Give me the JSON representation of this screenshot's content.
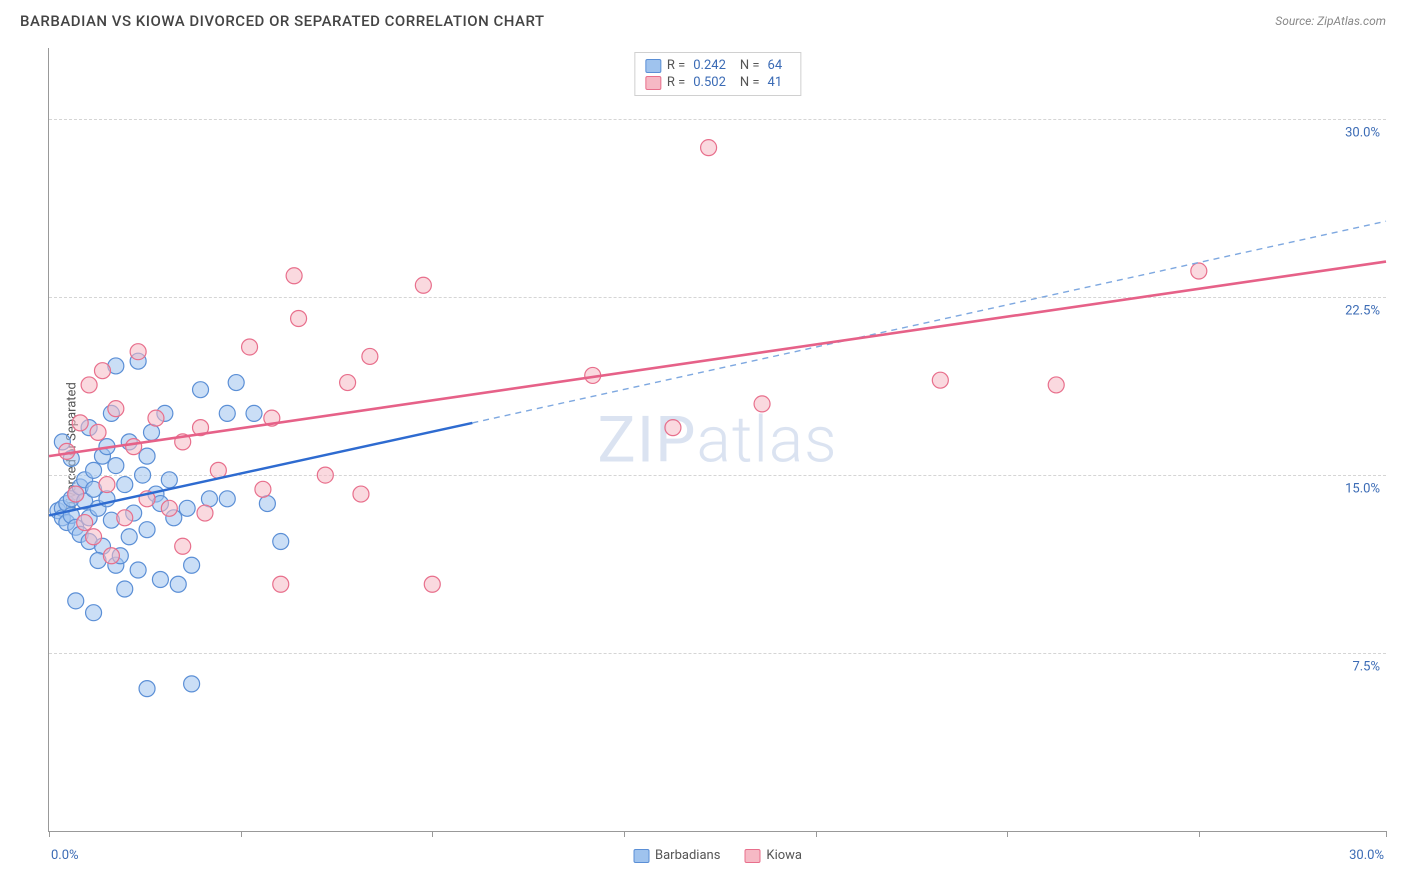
{
  "header": {
    "title": "BARBADIAN VS KIOWA DIVORCED OR SEPARATED CORRELATION CHART",
    "source": "Source: ZipAtlas.com"
  },
  "chart": {
    "type": "scatter",
    "watermark": "ZIPatlas",
    "ylabel": "Divorced or Separated",
    "xlim": [
      0,
      30
    ],
    "ylim": [
      0,
      33
    ],
    "xticks_pct": [
      0,
      4.3,
      8.6,
      12.9,
      17.2,
      21.5,
      25.8,
      30
    ],
    "x_axis_min_label": "0.0%",
    "x_axis_max_label": "30.0%",
    "yticks": [
      {
        "v": 7.5,
        "label": "7.5%"
      },
      {
        "v": 15.0,
        "label": "15.0%"
      },
      {
        "v": 22.5,
        "label": "22.5%"
      },
      {
        "v": 30.0,
        "label": "30.0%"
      }
    ],
    "background_color": "#ffffff",
    "grid_color": "#d5d5d5",
    "axis_color": "#999999",
    "label_color": "#3b6bb5",
    "marker_radius": 8,
    "marker_stroke_width": 1.2,
    "series": [
      {
        "name": "Barbadians",
        "fill": "#9fc3ee",
        "fill_opacity": 0.55,
        "stroke": "#5b8fd6",
        "R_label": "R =",
        "R": "0.242",
        "N_label": "N =",
        "N": "64",
        "trend": {
          "solid": {
            "x1": 0,
            "y1": 13.3,
            "x2": 9.5,
            "y2": 17.2,
            "color": "#2e6bd0",
            "width": 2.4
          },
          "dash": {
            "x1": 9.5,
            "y1": 17.2,
            "x2": 30,
            "y2": 25.7,
            "color": "#7ea8e0",
            "width": 1.4
          }
        },
        "points": [
          [
            0.2,
            13.5
          ],
          [
            0.3,
            13.6
          ],
          [
            0.3,
            13.2
          ],
          [
            0.4,
            13.8
          ],
          [
            0.4,
            13.0
          ],
          [
            0.5,
            14.0
          ],
          [
            0.5,
            13.3
          ],
          [
            0.6,
            14.2
          ],
          [
            0.6,
            12.8
          ],
          [
            0.7,
            14.5
          ],
          [
            0.7,
            12.5
          ],
          [
            0.8,
            13.9
          ],
          [
            0.8,
            14.8
          ],
          [
            0.9,
            13.2
          ],
          [
            0.9,
            12.2
          ],
          [
            1.0,
            14.4
          ],
          [
            1.0,
            15.2
          ],
          [
            1.1,
            13.6
          ],
          [
            1.2,
            15.8
          ],
          [
            1.2,
            12.0
          ],
          [
            1.3,
            16.2
          ],
          [
            1.3,
            14.0
          ],
          [
            1.4,
            13.1
          ],
          [
            1.5,
            11.2
          ],
          [
            1.5,
            15.4
          ],
          [
            1.5,
            19.6
          ],
          [
            1.6,
            11.6
          ],
          [
            1.7,
            14.6
          ],
          [
            1.8,
            12.4
          ],
          [
            1.8,
            16.4
          ],
          [
            1.9,
            13.4
          ],
          [
            2.0,
            19.8
          ],
          [
            2.0,
            11.0
          ],
          [
            2.1,
            15.0
          ],
          [
            2.2,
            12.7
          ],
          [
            2.3,
            16.8
          ],
          [
            2.4,
            14.2
          ],
          [
            2.5,
            10.6
          ],
          [
            2.5,
            13.8
          ],
          [
            2.6,
            17.6
          ],
          [
            2.8,
            13.2
          ],
          [
            1.0,
            9.2
          ],
          [
            2.2,
            6.0
          ],
          [
            3.2,
            6.2
          ],
          [
            3.1,
            13.6
          ],
          [
            3.4,
            18.6
          ],
          [
            2.9,
            10.4
          ],
          [
            3.6,
            14.0
          ],
          [
            3.2,
            11.2
          ],
          [
            4.0,
            17.6
          ],
          [
            4.2,
            18.9
          ],
          [
            4.6,
            17.6
          ],
          [
            4.9,
            13.8
          ],
          [
            5.2,
            12.2
          ],
          [
            4.0,
            14.0
          ],
          [
            2.7,
            14.8
          ],
          [
            0.3,
            16.4
          ],
          [
            0.5,
            15.7
          ],
          [
            0.6,
            9.7
          ],
          [
            0.9,
            17.0
          ],
          [
            1.1,
            11.4
          ],
          [
            1.4,
            17.6
          ],
          [
            1.7,
            10.2
          ],
          [
            2.2,
            15.8
          ]
        ]
      },
      {
        "name": "Kiowa",
        "fill": "#f6b9c5",
        "fill_opacity": 0.55,
        "stroke": "#e86f8c",
        "R_label": "R =",
        "R": "0.502",
        "N_label": "N =",
        "N": "41",
        "trend": {
          "solid": {
            "x1": 0,
            "y1": 15.8,
            "x2": 30,
            "y2": 24.0,
            "color": "#e66188",
            "width": 2.6
          }
        },
        "points": [
          [
            0.4,
            16.0
          ],
          [
            0.6,
            14.2
          ],
          [
            0.7,
            17.2
          ],
          [
            0.8,
            13.0
          ],
          [
            0.9,
            18.8
          ],
          [
            1.0,
            12.4
          ],
          [
            1.1,
            16.8
          ],
          [
            1.2,
            19.4
          ],
          [
            1.3,
            14.6
          ],
          [
            1.4,
            11.6
          ],
          [
            1.5,
            17.8
          ],
          [
            1.7,
            13.2
          ],
          [
            1.9,
            16.2
          ],
          [
            2.0,
            20.2
          ],
          [
            2.2,
            14.0
          ],
          [
            2.4,
            17.4
          ],
          [
            2.7,
            13.6
          ],
          [
            3.0,
            16.4
          ],
          [
            3.4,
            17.0
          ],
          [
            3.8,
            15.2
          ],
          [
            3.5,
            13.4
          ],
          [
            4.5,
            20.4
          ],
          [
            4.8,
            14.4
          ],
          [
            5.0,
            17.4
          ],
          [
            5.5,
            23.4
          ],
          [
            5.6,
            21.6
          ],
          [
            5.2,
            10.4
          ],
          [
            6.7,
            18.9
          ],
          [
            7.0,
            14.2
          ],
          [
            7.2,
            20.0
          ],
          [
            8.4,
            23.0
          ],
          [
            8.6,
            10.4
          ],
          [
            12.2,
            19.2
          ],
          [
            14.0,
            17.0
          ],
          [
            14.8,
            28.8
          ],
          [
            16.0,
            18.0
          ],
          [
            20.0,
            19.0
          ],
          [
            22.6,
            18.8
          ],
          [
            25.8,
            23.6
          ],
          [
            6.2,
            15.0
          ],
          [
            3.0,
            12.0
          ]
        ]
      }
    ],
    "bottom_legend": [
      {
        "swatch_fill": "#9fc3ee",
        "swatch_stroke": "#5b8fd6",
        "label": "Barbadians"
      },
      {
        "swatch_fill": "#f6b9c5",
        "swatch_stroke": "#e86f8c",
        "label": "Kiowa"
      }
    ]
  }
}
